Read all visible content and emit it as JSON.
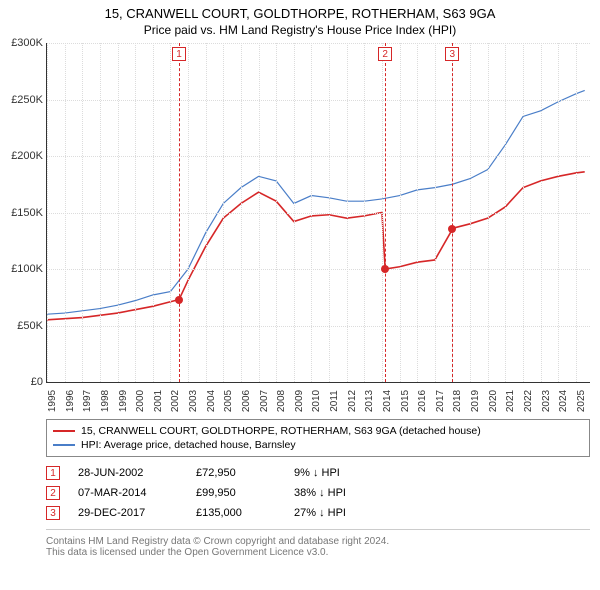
{
  "title": "15, CRANWELL COURT, GOLDTHORPE, ROTHERHAM, S63 9GA",
  "subtitle": "Price paid vs. HM Land Registry's House Price Index (HPI)",
  "chart": {
    "type": "line",
    "background_color": "#ffffff",
    "grid_color": "#dcdcdc",
    "axis_color": "#333333",
    "x": {
      "min": 1995,
      "max": 2025.8,
      "ticks": [
        1995,
        1996,
        1997,
        1998,
        1999,
        2000,
        2001,
        2002,
        2003,
        2004,
        2005,
        2006,
        2007,
        2008,
        2009,
        2010,
        2011,
        2012,
        2013,
        2014,
        2015,
        2016,
        2017,
        2018,
        2019,
        2020,
        2021,
        2022,
        2023,
        2024,
        2025
      ],
      "tick_labels": [
        "1995",
        "1996",
        "1997",
        "1998",
        "1999",
        "2000",
        "2001",
        "2002",
        "2003",
        "2004",
        "2005",
        "2006",
        "2007",
        "2008",
        "2009",
        "2010",
        "2011",
        "2012",
        "2013",
        "2014",
        "2015",
        "2016",
        "2017",
        "2018",
        "2019",
        "2020",
        "2021",
        "2022",
        "2023",
        "2024",
        "2025"
      ],
      "label_fontsize": 10
    },
    "y": {
      "min": 0,
      "max": 300000,
      "ticks": [
        0,
        50000,
        100000,
        150000,
        200000,
        250000,
        300000
      ],
      "tick_labels": [
        "£0",
        "£50K",
        "£100K",
        "£150K",
        "£200K",
        "£250K",
        "£300K"
      ],
      "label_fontsize": 11
    },
    "series": [
      {
        "id": "property",
        "label": "15, CRANWELL COURT, GOLDTHORPE, ROTHERHAM, S63 9GA (detached house)",
        "color": "#d62728",
        "line_width": 1.6,
        "x": [
          1995,
          1996,
          1997,
          1998,
          1999,
          2000,
          2001,
          2002,
          2002.49,
          2003,
          2004,
          2005,
          2006,
          2007,
          2008,
          2009,
          2010,
          2011,
          2012,
          2013,
          2014,
          2014.18,
          2015,
          2016,
          2017,
          2017.99,
          2018,
          2019,
          2020,
          2021,
          2022,
          2023,
          2024,
          2025,
          2025.5
        ],
        "y": [
          55000,
          56000,
          57000,
          59000,
          61000,
          64000,
          67000,
          71000,
          72950,
          90000,
          120000,
          145000,
          158000,
          168000,
          160000,
          142000,
          147000,
          148000,
          145000,
          147000,
          150000,
          99950,
          102000,
          106000,
          108000,
          135000,
          136000,
          140000,
          145000,
          155000,
          172000,
          178000,
          182000,
          185000,
          186000
        ]
      },
      {
        "id": "hpi",
        "label": "HPI: Average price, detached house, Barnsley",
        "color": "#4a7ec8",
        "line_width": 1.2,
        "x": [
          1995,
          1996,
          1997,
          1998,
          1999,
          2000,
          2001,
          2002,
          2003,
          2004,
          2005,
          2006,
          2007,
          2008,
          2009,
          2010,
          2011,
          2012,
          2013,
          2014,
          2015,
          2016,
          2017,
          2018,
          2019,
          2020,
          2021,
          2022,
          2023,
          2024,
          2025,
          2025.5
        ],
        "y": [
          60000,
          61000,
          63000,
          65000,
          68000,
          72000,
          77000,
          80000,
          100000,
          132000,
          158000,
          172000,
          182000,
          178000,
          158000,
          165000,
          163000,
          160000,
          160000,
          162000,
          165000,
          170000,
          172000,
          175000,
          180000,
          188000,
          210000,
          235000,
          240000,
          248000,
          255000,
          258000
        ]
      }
    ],
    "event_markers": [
      {
        "n": "1",
        "x": 2002.49,
        "y": 72950,
        "color": "#d62728"
      },
      {
        "n": "2",
        "x": 2014.18,
        "y": 99950,
        "color": "#d62728"
      },
      {
        "n": "3",
        "x": 2017.99,
        "y": 135000,
        "color": "#d62728"
      }
    ],
    "event_lines": [
      {
        "n": "1",
        "x": 2002.49,
        "color": "#d62728"
      },
      {
        "n": "2",
        "x": 2014.18,
        "color": "#d62728"
      },
      {
        "n": "3",
        "x": 2017.99,
        "color": "#d62728"
      }
    ]
  },
  "legend": {
    "items": [
      {
        "color": "#d62728",
        "label": "15, CRANWELL COURT, GOLDTHORPE, ROTHERHAM, S63 9GA (detached house)"
      },
      {
        "color": "#4a7ec8",
        "label": "HPI: Average price, detached house, Barnsley"
      }
    ]
  },
  "events_table": {
    "rows": [
      {
        "n": "1",
        "color": "#d62728",
        "date": "28-JUN-2002",
        "price": "£72,950",
        "hpi": "9% ↓ HPI"
      },
      {
        "n": "2",
        "color": "#d62728",
        "date": "07-MAR-2014",
        "price": "£99,950",
        "hpi": "38% ↓ HPI"
      },
      {
        "n": "3",
        "color": "#d62728",
        "date": "29-DEC-2017",
        "price": "£135,000",
        "hpi": "27% ↓ HPI"
      }
    ]
  },
  "footer": {
    "line1": "Contains HM Land Registry data © Crown copyright and database right 2024.",
    "line2": "This data is licensed under the Open Government Licence v3.0."
  }
}
